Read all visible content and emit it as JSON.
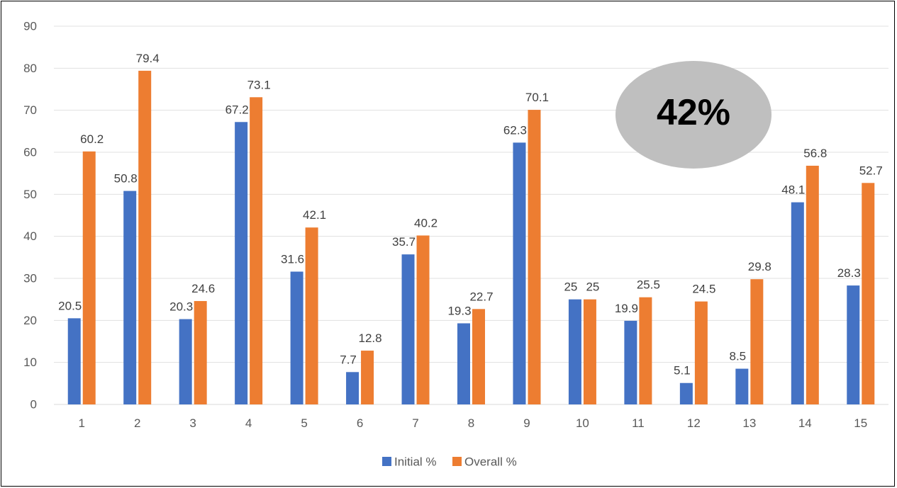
{
  "chart_data": {
    "type": "bar",
    "categories": [
      "1",
      "2",
      "3",
      "4",
      "5",
      "6",
      "7",
      "8",
      "9",
      "10",
      "11",
      "12",
      "13",
      "14",
      "15"
    ],
    "series": [
      {
        "name": "Initial %",
        "color": "#4472C4",
        "values": [
          20.5,
          50.8,
          20.3,
          67.2,
          31.6,
          7.7,
          35.7,
          19.3,
          62.3,
          25,
          19.9,
          5.1,
          8.5,
          48.1,
          28.3
        ]
      },
      {
        "name": "Overall %",
        "color": "#ED7D31",
        "values": [
          60.2,
          79.4,
          24.6,
          73.1,
          42.1,
          12.8,
          40.2,
          22.7,
          70.1,
          25,
          25.5,
          24.5,
          29.8,
          56.8,
          52.7
        ]
      }
    ],
    "yticks": [
      "0",
      "10",
      "20",
      "30",
      "40",
      "50",
      "60",
      "70",
      "80",
      "90"
    ],
    "ylim": [
      0,
      90
    ],
    "grid": true,
    "legend": "bottom",
    "annotation": {
      "text": "42%",
      "color": "#BFBFBF"
    }
  }
}
